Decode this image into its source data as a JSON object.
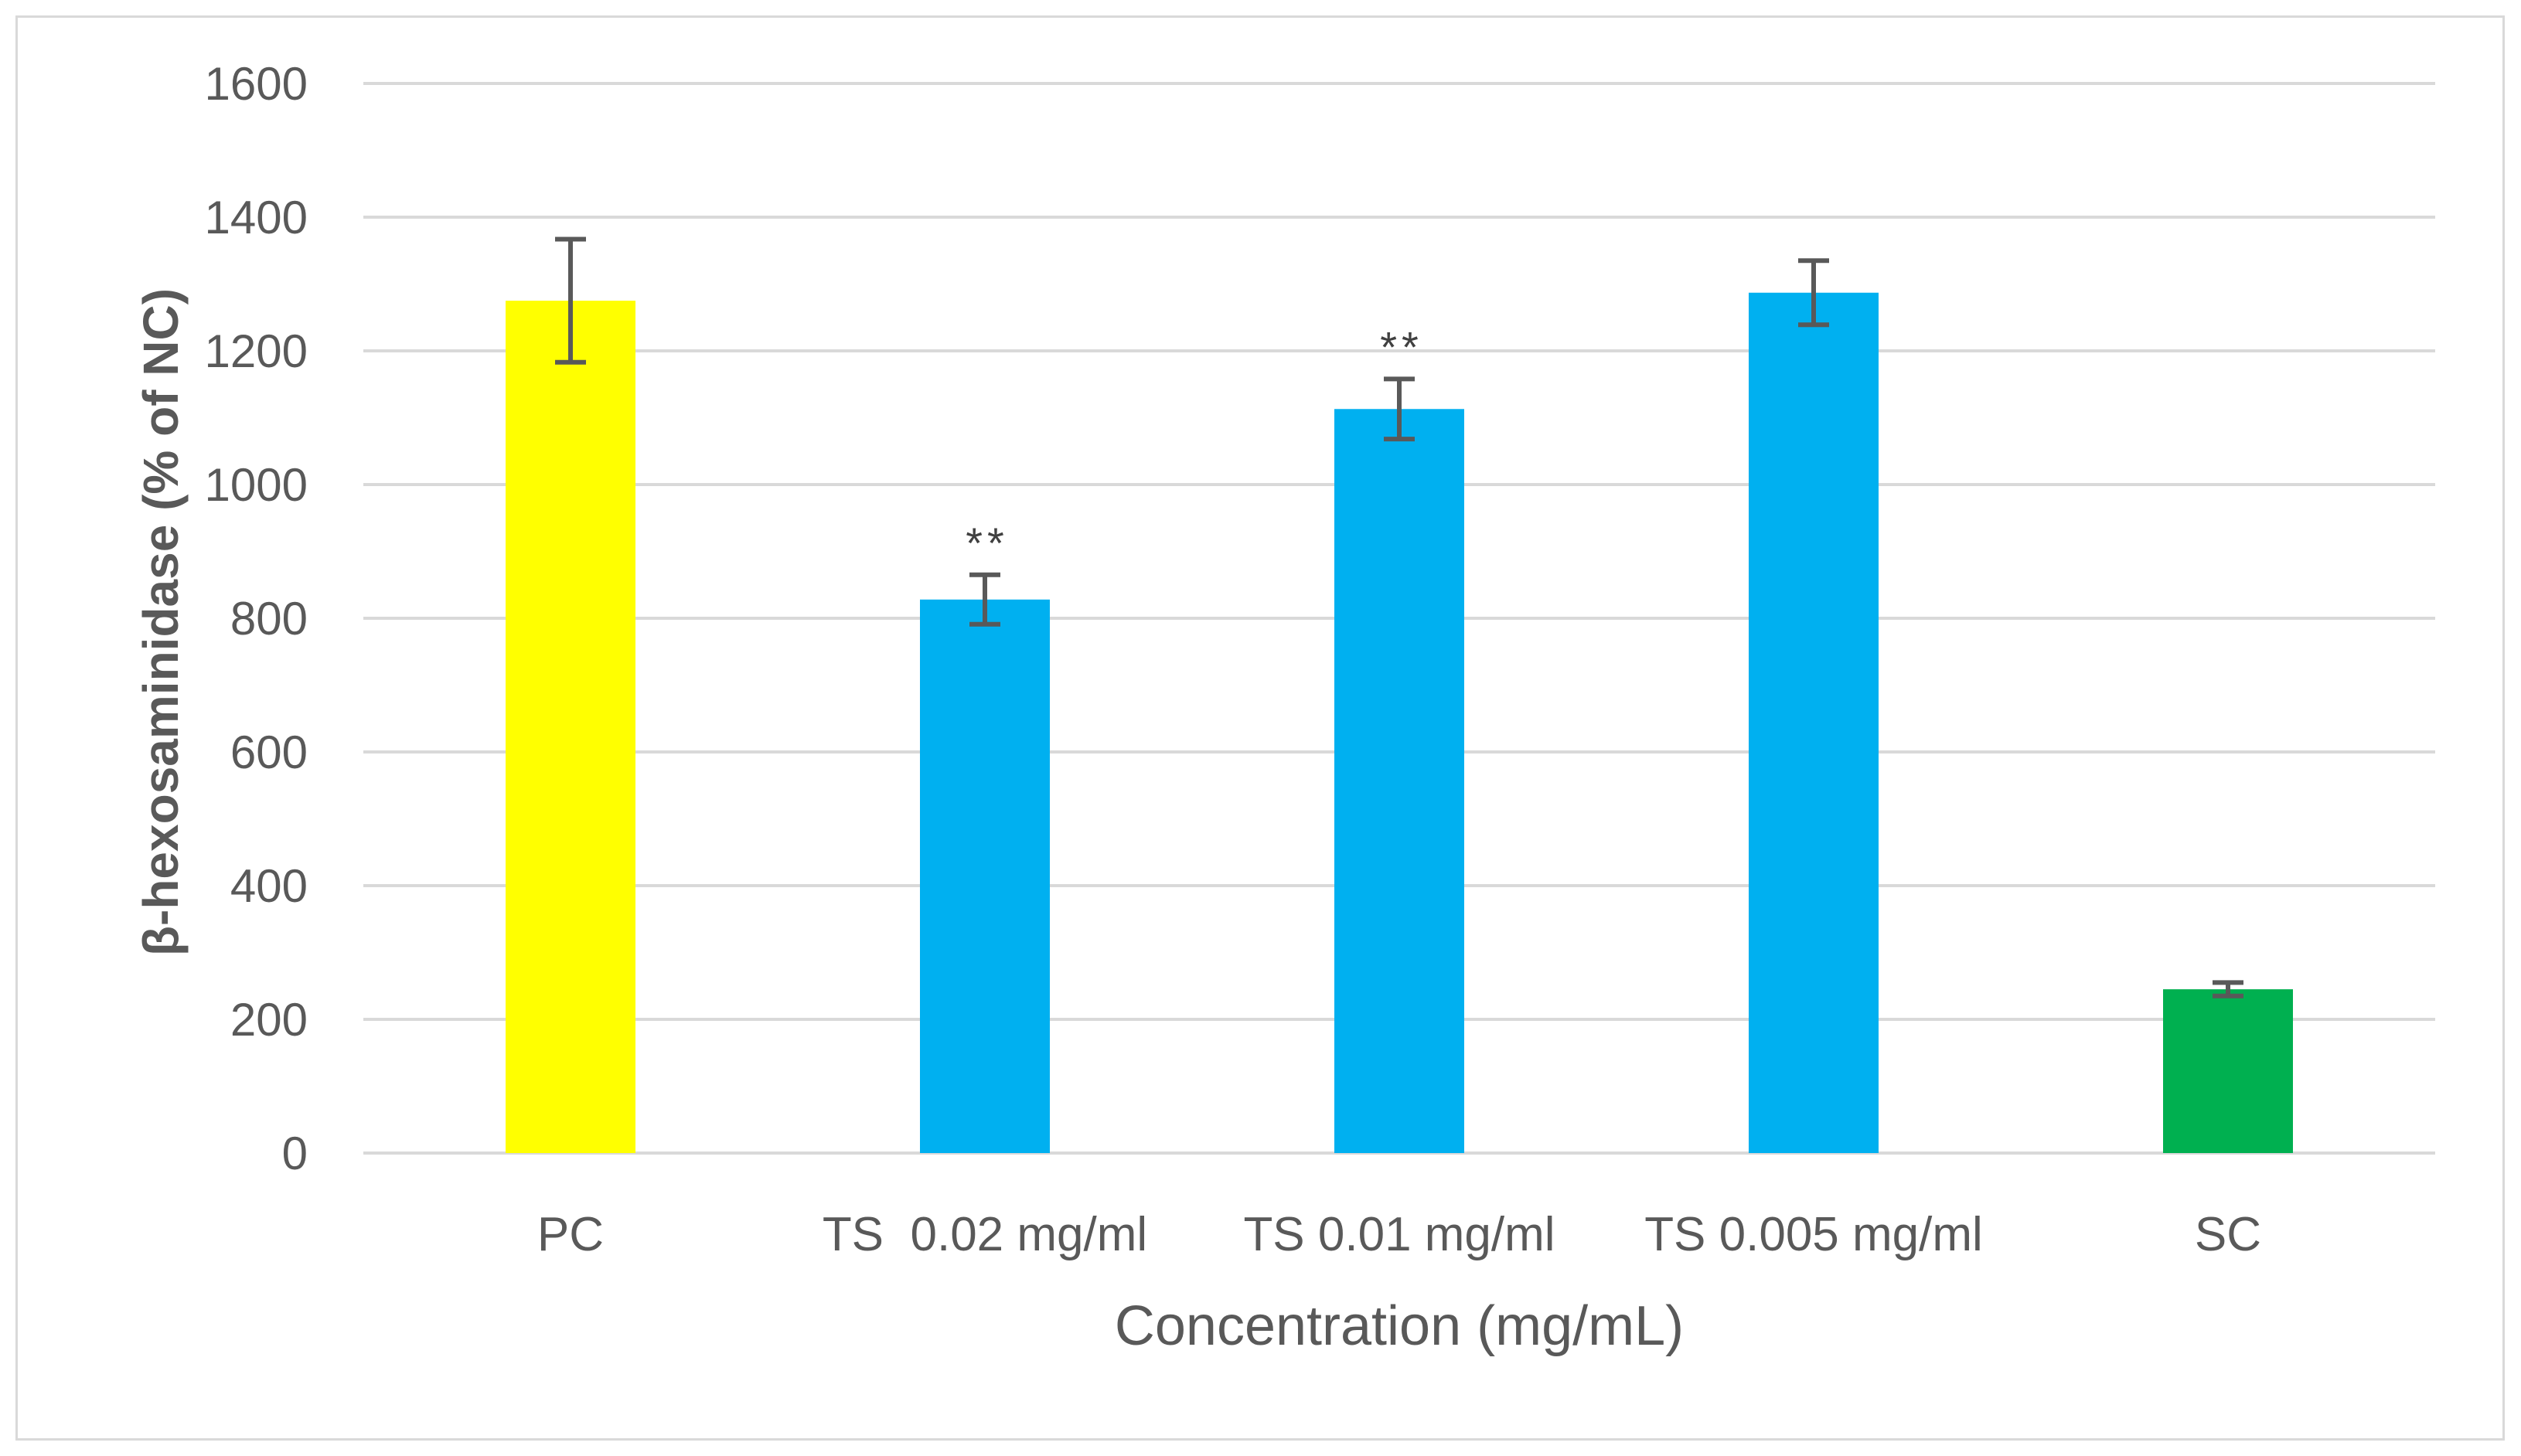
{
  "chart_data": {
    "type": "bar",
    "title": "",
    "xlabel": "Concentration (mg/mL)",
    "ylabel": "β-hexosaminidase (% of NC)",
    "ylim": [
      0,
      1600
    ],
    "yticks": [
      0,
      200,
      400,
      600,
      800,
      1000,
      1200,
      1400,
      1600
    ],
    "grid": true,
    "legend": "none",
    "categories": [
      "PC",
      "TS  0.02 mg/ml",
      "TS 0.01 mg/ml",
      "TS 0.005 mg/ml",
      "SC"
    ],
    "values": [
      1275,
      828,
      1113,
      1287,
      245
    ],
    "errors": [
      92,
      37,
      45,
      48,
      10
    ],
    "colors": [
      "#ffff00",
      "#00b0f0",
      "#00b0f0",
      "#00b0f0",
      "#00b050"
    ],
    "annotations": [
      "",
      "**",
      "**",
      "",
      ""
    ],
    "gridline_color": "#d9d9d9",
    "error_bar_color": "#595959"
  }
}
